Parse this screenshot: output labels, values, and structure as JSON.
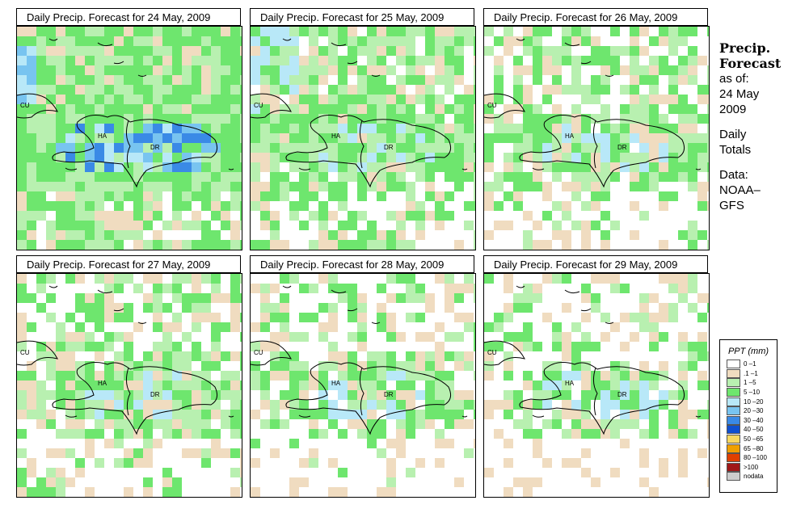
{
  "panels": [
    {
      "title": "Daily Precip. Forecast for  24 May, 2009"
    },
    {
      "title": "Daily Precip. Forecast for  25 May, 2009"
    },
    {
      "title": "Daily Precip. Forecast for  26 May, 2009"
    },
    {
      "title": "Daily Precip. Forecast for  27 May, 2009"
    },
    {
      "title": "Daily Precip. Forecast for  28 May, 2009"
    },
    {
      "title": "Daily Precip. Forecast for  29 May, 2009"
    }
  ],
  "map_labels": {
    "cuba": "CU",
    "haiti": "HA",
    "dominican_republic": "DR"
  },
  "side": {
    "title_line1": "Precip.",
    "title_line2": "Forecast",
    "as_of": "as of:",
    "date_line1": "24 May",
    "date_line2": "2009",
    "totals_line1": "Daily",
    "totals_line2": "Totals",
    "data_line1": "Data:",
    "data_line2": "NOAA–",
    "data_line3": "GFS"
  },
  "legend": {
    "title": "PPT (mm)",
    "items": [
      {
        "label": "0 –1",
        "color": "#ffffff"
      },
      {
        "label": ".1 –1",
        "color": "#f0dcc0"
      },
      {
        "label": "1 –5",
        "color": "#b8f0b0"
      },
      {
        "label": "5 –10",
        "color": "#6ee66e"
      },
      {
        "label": "10 –20",
        "color": "#b8e8f8"
      },
      {
        "label": "20 –30",
        "color": "#78c4f0"
      },
      {
        "label": "30 –40",
        "color": "#3a8ae6"
      },
      {
        "label": "40 –50",
        "color": "#1050d0"
      },
      {
        "label": "50 –65",
        "color": "#f8d860"
      },
      {
        "label": "65 –80",
        "color": "#f0a000"
      },
      {
        "label": "80 –100",
        "color": "#e04000"
      },
      {
        "label": ">100",
        "color": "#a01818"
      },
      {
        "label": "nodata",
        "color": "#cccccc"
      }
    ]
  }
}
